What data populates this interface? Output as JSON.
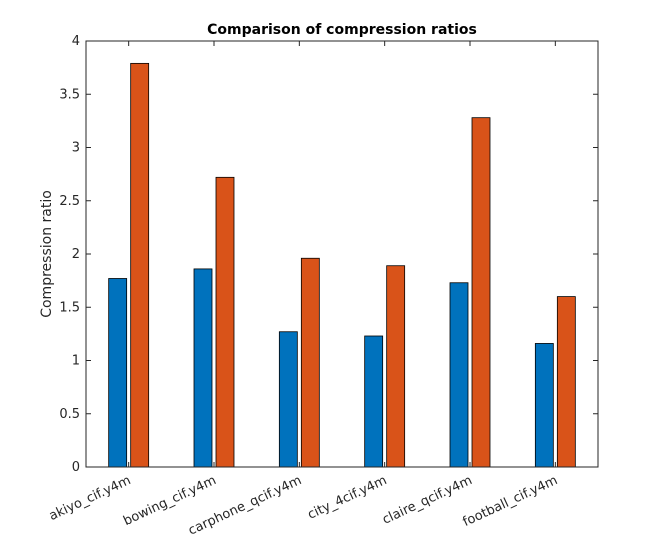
{
  "chart_data": {
    "type": "bar",
    "title": "Comparison of compression ratios",
    "xlabel": "",
    "ylabel": "Compression ratio",
    "ylim": [
      0,
      4
    ],
    "yticks": [
      0,
      0.5,
      1,
      1.5,
      2,
      2.5,
      3,
      3.5,
      4
    ],
    "ytick_labels": [
      "0",
      "0.5",
      "1",
      "1.5",
      "2",
      "2.5",
      "3",
      "3.5",
      "4"
    ],
    "grid": false,
    "legend": "none",
    "categories": [
      "akiyo_cif.y4m",
      "bowing_cif.y4m",
      "carphone_qcif.y4m",
      "city_4cif.y4m",
      "claire_qcif.y4m",
      "football_cif.y4m"
    ],
    "series": [
      {
        "color": "#0072BD",
        "values": [
          1.77,
          1.86,
          1.27,
          1.23,
          1.73,
          1.16
        ]
      },
      {
        "color": "#D95319",
        "values": [
          3.79,
          2.72,
          1.96,
          1.89,
          3.28,
          1.6
        ]
      }
    ]
  }
}
